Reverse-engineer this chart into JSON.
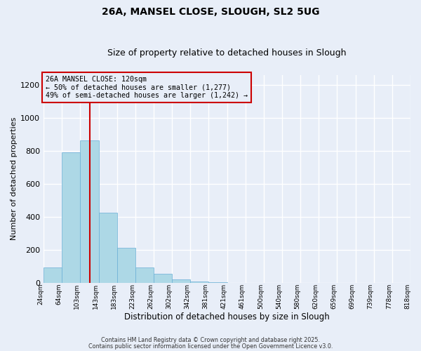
{
  "title": "26A, MANSEL CLOSE, SLOUGH, SL2 5UG",
  "subtitle": "Size of property relative to detached houses in Slough",
  "xlabel": "Distribution of detached houses by size in Slough",
  "ylabel": "Number of detached properties",
  "bar_values": [
    90,
    790,
    865,
    425,
    210,
    90,
    52,
    20,
    5,
    2,
    0,
    0,
    0,
    0,
    0,
    0,
    0,
    0,
    0,
    0
  ],
  "categories": [
    "24sqm",
    "64sqm",
    "103sqm",
    "143sqm",
    "183sqm",
    "223sqm",
    "262sqm",
    "302sqm",
    "342sqm",
    "381sqm",
    "421sqm",
    "461sqm",
    "500sqm",
    "540sqm",
    "580sqm",
    "620sqm",
    "659sqm",
    "699sqm",
    "739sqm",
    "778sqm",
    "818sqm"
  ],
  "bar_color": "#add8e6",
  "bar_edge_color": "#6aaed6",
  "vline_color": "#cc0000",
  "annotation_title": "26A MANSEL CLOSE: 120sqm",
  "annotation_line1": "← 50% of detached houses are smaller (1,277)",
  "annotation_line2": "49% of semi-detached houses are larger (1,242) →",
  "annotation_box_color": "#cc0000",
  "ylim": [
    0,
    1260
  ],
  "yticks": [
    0,
    200,
    400,
    600,
    800,
    1000,
    1200
  ],
  "footer1": "Contains HM Land Registry data © Crown copyright and database right 2025.",
  "footer2": "Contains public sector information licensed under the Open Government Licence v3.0.",
  "bg_color": "#e8eef8",
  "grid_color": "#ffffff",
  "figsize": [
    6.0,
    5.0
  ],
  "dpi": 100
}
